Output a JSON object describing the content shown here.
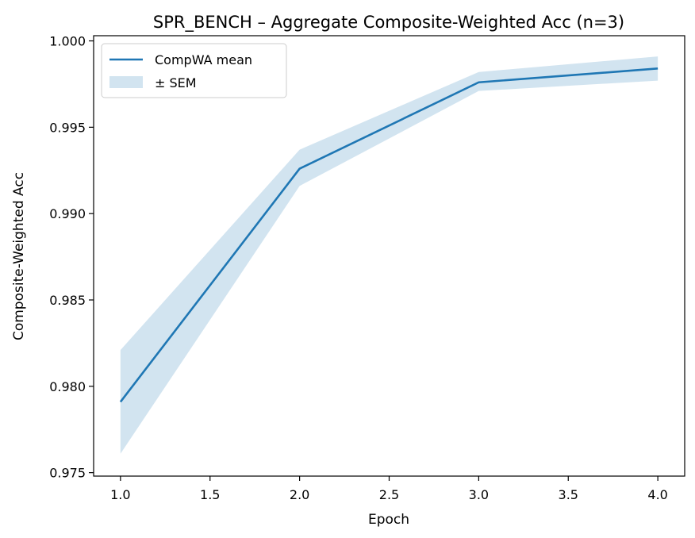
{
  "chart_data": {
    "type": "line",
    "title": "SPR_BENCH – Aggregate Composite-Weighted Acc (n=3)",
    "xlabel": "Epoch",
    "ylabel": "Composite-Weighted Acc",
    "xlim": [
      0.85,
      4.15
    ],
    "ylim": [
      0.9748,
      1.0003
    ],
    "xticks": [
      "1.0",
      "1.5",
      "2.0",
      "2.5",
      "3.0",
      "3.5",
      "4.0"
    ],
    "yticks": [
      "0.975",
      "0.980",
      "0.985",
      "0.990",
      "0.995",
      "1.000"
    ],
    "grid": false,
    "legend_position": "top-left",
    "series": [
      {
        "name": "CompWA mean",
        "color": "#1f77b4",
        "x": [
          1.0,
          2.0,
          3.0,
          4.0
        ],
        "y": [
          0.9791,
          0.9926,
          0.9976,
          0.9984
        ]
      }
    ],
    "band": {
      "name": "± SEM",
      "color": "#1f77b4",
      "opacity": 0.2,
      "x": [
        1.0,
        2.0,
        3.0,
        4.0
      ],
      "lower": [
        0.9761,
        0.9916,
        0.9971,
        0.9977
      ],
      "upper": [
        0.9821,
        0.9937,
        0.9982,
        0.9991
      ]
    }
  }
}
